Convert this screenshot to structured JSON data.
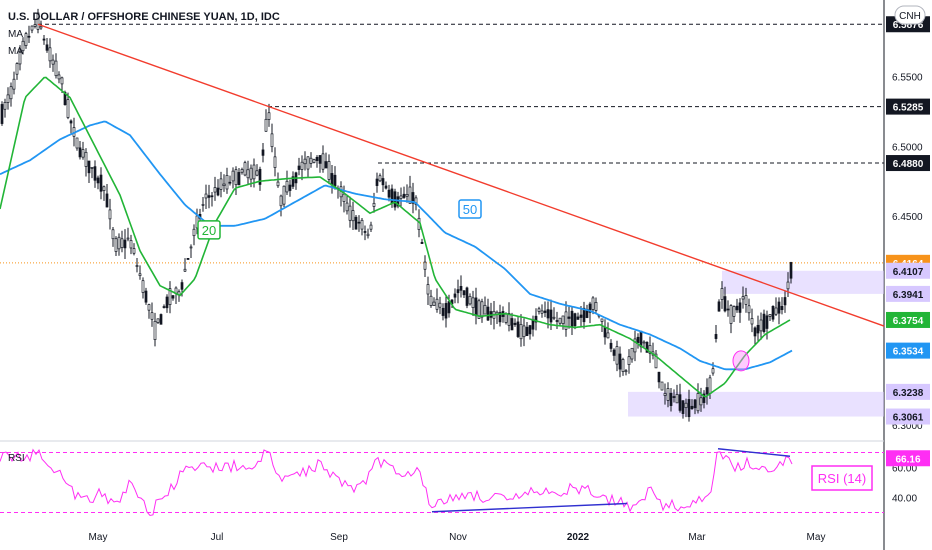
{
  "header": {
    "title": "U.S. DOLLAR / OFFSHORE CHINESE YUAN, 1D, IDC",
    "indicator_1": "MA",
    "indicator_2": "MA",
    "symbol_badge": "CNH"
  },
  "colors": {
    "candle": "#131722",
    "ma20": "#22b537",
    "ma50": "#2196f3",
    "trendline": "#f23c2d",
    "rsi": "#ff2ef4",
    "rsi_div": "#3030d0",
    "zone": "#d7c8ff"
  },
  "chart_data": [
    {
      "type": "line",
      "title": "U.S. DOLLAR / OFFSHORE CHINESE YUAN, 1D, IDC",
      "y_axis_ticks": [
        "6.5500",
        "6.5000",
        "6.4500",
        "6.3000"
      ],
      "x_axis_ticks": [
        "May",
        "Jul",
        "Sep",
        "Nov",
        "2022",
        "Mar",
        "May"
      ],
      "ylim": [
        6.295,
        6.605
      ],
      "series_labels": [
        "20",
        "50"
      ],
      "price_labels": [
        {
          "value": 6.5876,
          "text": "6.5876",
          "style": "dark"
        },
        {
          "value": 6.5285,
          "text": "6.5285",
          "style": "dark"
        },
        {
          "value": 6.488,
          "text": "6.4880",
          "style": "dark"
        },
        {
          "value": 6.4164,
          "text": "6.4164",
          "style": "orange"
        },
        {
          "value": 6.4107,
          "text": "6.4107",
          "style": "lavender"
        },
        {
          "value": 6.3941,
          "text": "6.3941",
          "style": "lavender"
        },
        {
          "value": 6.3754,
          "text": "6.3754",
          "style": "green"
        },
        {
          "value": 6.3534,
          "text": "6.3534",
          "style": "blue"
        },
        {
          "value": 6.3238,
          "text": "6.3238",
          "style": "lavender"
        },
        {
          "value": 6.3061,
          "text": "6.3061",
          "style": "lavender"
        }
      ],
      "levels": [
        6.5876,
        6.5285,
        6.488
      ],
      "zones": [
        {
          "from": 6.3941,
          "to": 6.4107
        },
        {
          "from": 6.3061,
          "to": 6.3238
        }
      ],
      "trendline": {
        "start": 6.5876,
        "end": 6.371
      },
      "ma20_anchor": [
        [
          0,
          6.455
        ],
        [
          25,
          6.535
        ],
        [
          45,
          6.55
        ],
        [
          70,
          6.535
        ],
        [
          95,
          6.5
        ],
        [
          120,
          6.465
        ],
        [
          140,
          6.425
        ],
        [
          160,
          6.4
        ],
        [
          180,
          6.393
        ],
        [
          195,
          6.405
        ],
        [
          215,
          6.445
        ],
        [
          235,
          6.47
        ],
        [
          260,
          6.475
        ],
        [
          290,
          6.477
        ],
        [
          320,
          6.478
        ],
        [
          345,
          6.466
        ],
        [
          370,
          6.452
        ],
        [
          395,
          6.46
        ],
        [
          420,
          6.445
        ],
        [
          435,
          6.405
        ],
        [
          455,
          6.383
        ],
        [
          480,
          6.378
        ],
        [
          505,
          6.38
        ],
        [
          525,
          6.377
        ],
        [
          550,
          6.372
        ],
        [
          575,
          6.37
        ],
        [
          600,
          6.372
        ],
        [
          630,
          6.362
        ],
        [
          655,
          6.35
        ],
        [
          680,
          6.335
        ],
        [
          705,
          6.32
        ],
        [
          725,
          6.33
        ],
        [
          745,
          6.35
        ],
        [
          765,
          6.365
        ],
        [
          790,
          6.3754
        ]
      ],
      "ma50_anchor": [
        [
          0,
          6.48
        ],
        [
          30,
          6.49
        ],
        [
          60,
          6.505
        ],
        [
          90,
          6.515
        ],
        [
          105,
          6.518
        ],
        [
          130,
          6.508
        ],
        [
          160,
          6.48
        ],
        [
          185,
          6.458
        ],
        [
          210,
          6.443
        ],
        [
          235,
          6.443
        ],
        [
          265,
          6.448
        ],
        [
          295,
          6.46
        ],
        [
          325,
          6.472
        ],
        [
          355,
          6.466
        ],
        [
          385,
          6.462
        ],
        [
          415,
          6.46
        ],
        [
          445,
          6.438
        ],
        [
          475,
          6.428
        ],
        [
          505,
          6.412
        ],
        [
          530,
          6.394
        ],
        [
          560,
          6.387
        ],
        [
          590,
          6.382
        ],
        [
          620,
          6.372
        ],
        [
          650,
          6.365
        ],
        [
          680,
          6.355
        ],
        [
          700,
          6.346
        ],
        [
          725,
          6.34
        ],
        [
          745,
          6.34
        ],
        [
          770,
          6.345
        ],
        [
          792,
          6.3534
        ]
      ],
      "price_anchor": [
        [
          0,
          6.52
        ],
        [
          12,
          6.54
        ],
        [
          25,
          6.575
        ],
        [
          38,
          6.59
        ],
        [
          50,
          6.565
        ],
        [
          62,
          6.545
        ],
        [
          75,
          6.505
        ],
        [
          90,
          6.485
        ],
        [
          105,
          6.47
        ],
        [
          115,
          6.428
        ],
        [
          130,
          6.433
        ],
        [
          145,
          6.395
        ],
        [
          155,
          6.368
        ],
        [
          168,
          6.39
        ],
        [
          180,
          6.396
        ],
        [
          192,
          6.432
        ],
        [
          205,
          6.462
        ],
        [
          225,
          6.473
        ],
        [
          245,
          6.482
        ],
        [
          260,
          6.479
        ],
        [
          268,
          6.527
        ],
        [
          280,
          6.46
        ],
        [
          300,
          6.485
        ],
        [
          320,
          6.493
        ],
        [
          335,
          6.475
        ],
        [
          350,
          6.452
        ],
        [
          370,
          6.435
        ],
        [
          378,
          6.48
        ],
        [
          395,
          6.462
        ],
        [
          415,
          6.465
        ],
        [
          430,
          6.388
        ],
        [
          445,
          6.382
        ],
        [
          460,
          6.398
        ],
        [
          480,
          6.382
        ],
        [
          505,
          6.378
        ],
        [
          525,
          6.365
        ],
        [
          540,
          6.382
        ],
        [
          560,
          6.374
        ],
        [
          580,
          6.378
        ],
        [
          595,
          6.387
        ],
        [
          610,
          6.36
        ],
        [
          625,
          6.338
        ],
        [
          640,
          6.364
        ],
        [
          655,
          6.348
        ],
        [
          665,
          6.32
        ],
        [
          675,
          6.32
        ],
        [
          688,
          6.312
        ],
        [
          705,
          6.32
        ],
        [
          712,
          6.332
        ],
        [
          720,
          6.395
        ],
        [
          732,
          6.378
        ],
        [
          745,
          6.392
        ],
        [
          755,
          6.368
        ],
        [
          770,
          6.378
        ],
        [
          785,
          6.388
        ],
        [
          792,
          6.4164
        ]
      ]
    },
    {
      "type": "line",
      "title": "RSI",
      "name": "RSI (14)",
      "y_axis_ticks": [
        "60.00",
        "40.00"
      ],
      "current_value": "66.16",
      "ylim": [
        25,
        75
      ],
      "upper_band": 70,
      "lower_band": 30,
      "anchor": [
        [
          0,
          68
        ],
        [
          20,
          66
        ],
        [
          40,
          70
        ],
        [
          60,
          56
        ],
        [
          80,
          38
        ],
        [
          100,
          42
        ],
        [
          115,
          34
        ],
        [
          130,
          50
        ],
        [
          150,
          30
        ],
        [
          165,
          41
        ],
        [
          185,
          58
        ],
        [
          205,
          60
        ],
        [
          225,
          61
        ],
        [
          250,
          60
        ],
        [
          268,
          70
        ],
        [
          280,
          51
        ],
        [
          300,
          56
        ],
        [
          320,
          63
        ],
        [
          340,
          51
        ],
        [
          360,
          46
        ],
        [
          378,
          65
        ],
        [
          400,
          57
        ],
        [
          420,
          58
        ],
        [
          432,
          32
        ],
        [
          450,
          40
        ],
        [
          470,
          42
        ],
        [
          490,
          40
        ],
        [
          510,
          37
        ],
        [
          530,
          44
        ],
        [
          550,
          42
        ],
        [
          570,
          46
        ],
        [
          590,
          44
        ],
        [
          605,
          39
        ],
        [
          620,
          38
        ],
        [
          630,
          34
        ],
        [
          650,
          45
        ],
        [
          665,
          34
        ],
        [
          680,
          35
        ],
        [
          705,
          38
        ],
        [
          712,
          46
        ],
        [
          718,
          72
        ],
        [
          735,
          58
        ],
        [
          750,
          64
        ],
        [
          765,
          58
        ],
        [
          778,
          60
        ],
        [
          792,
          66
        ]
      ],
      "divergence_lines": [
        {
          "x1": 432,
          "y1": 30.5,
          "x2": 627,
          "y2": 36.0
        },
        {
          "x1": 718,
          "y1": 72.5,
          "x2": 790,
          "y2": 67.5
        }
      ]
    }
  ]
}
